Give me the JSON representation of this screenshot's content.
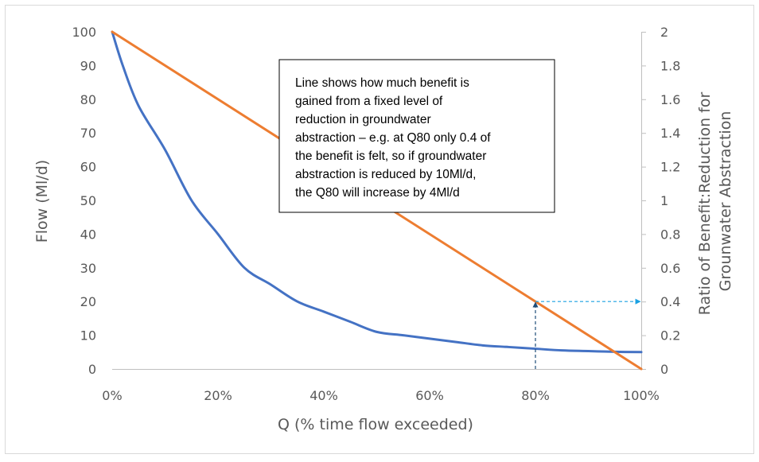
{
  "chart_data": {
    "type": "line",
    "xlabel": "Q (% time flow exceeded)",
    "ylabel": "Flow (Ml/d)",
    "y2label_lines": [
      "Ratio of Benefit:Reduction for",
      "Grounwater Abstraction"
    ],
    "xlim": [
      0,
      100
    ],
    "ylim": [
      0,
      100
    ],
    "y2lim": [
      0,
      2
    ],
    "x_ticks": [
      "0%",
      "20%",
      "40%",
      "60%",
      "80%",
      "100%"
    ],
    "y_ticks": [
      "0",
      "10",
      "20",
      "30",
      "40",
      "50",
      "60",
      "70",
      "80",
      "90",
      "100"
    ],
    "y2_ticks": [
      "0",
      "0.2",
      "0.4",
      "0.6",
      "0.8",
      "1",
      "1.2",
      "1.4",
      "1.6",
      "1.8",
      "2"
    ],
    "grid": false,
    "legend": "none",
    "series": [
      {
        "axis": "left",
        "color": "#4472C4",
        "x": [
          0,
          2,
          5,
          10,
          15,
          20,
          25,
          30,
          35,
          40,
          45,
          50,
          55,
          60,
          65,
          70,
          75,
          80,
          85,
          90,
          95,
          100
        ],
        "y": [
          100,
          90,
          78,
          65,
          50,
          40,
          30,
          25,
          20,
          17,
          14,
          11,
          10,
          9,
          8,
          7,
          6.5,
          6,
          5.5,
          5.3,
          5.1,
          5
        ]
      },
      {
        "axis": "right",
        "color": "#ED7D31",
        "x": [
          0,
          100
        ],
        "y": [
          2,
          0
        ]
      }
    ],
    "annotations": {
      "text_lines": [
        "Line shows how much benefit is",
        "gained from a fixed level of",
        "reduction in groundwater",
        "abstraction – e.g. at Q80 only 0.4 of",
        "the benefit is felt, so if groundwater",
        "abstraction is reduced by 10Ml/d,",
        "the Q80 will increase by 4Ml/d"
      ],
      "marker_x": 80,
      "marker_y2": 0.4,
      "vertical_arrow_color": "#1F4E79",
      "horizontal_arrow_color": "#1BA1E2"
    }
  }
}
